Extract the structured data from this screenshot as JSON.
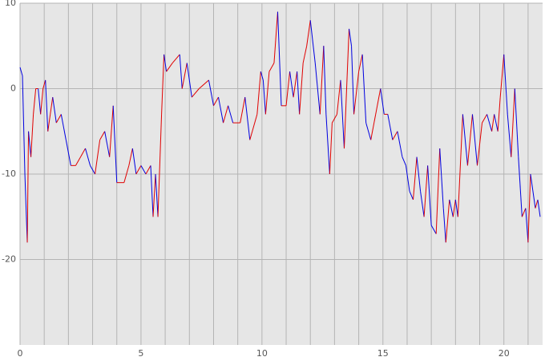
{
  "chart_data": {
    "type": "line",
    "x": [
      0,
      0.1,
      0.2,
      0.3,
      0.35,
      0.45,
      0.55,
      0.65,
      0.75,
      0.85,
      0.95,
      1.05,
      1.15,
      1.25,
      1.35,
      1.5,
      1.7,
      1.9,
      2.1,
      2.3,
      2.5,
      2.7,
      2.9,
      3.1,
      3.3,
      3.5,
      3.7,
      3.85,
      4.0,
      4.3,
      4.5,
      4.65,
      4.8,
      5.0,
      5.2,
      5.4,
      5.5,
      5.6,
      5.7,
      5.85,
      5.95,
      6.05,
      6.3,
      6.6,
      6.7,
      6.9,
      7.1,
      7.4,
      7.8,
      8.0,
      8.2,
      8.4,
      8.6,
      8.8,
      9.1,
      9.3,
      9.5,
      9.8,
      9.95,
      10.05,
      10.15,
      10.3,
      10.5,
      10.65,
      10.8,
      11.0,
      11.15,
      11.3,
      11.45,
      11.55,
      11.7,
      11.85,
      12.0,
      12.2,
      12.4,
      12.55,
      12.65,
      12.8,
      12.9,
      13.1,
      13.25,
      13.4,
      13.6,
      13.7,
      13.8,
      14.0,
      14.15,
      14.3,
      14.5,
      14.7,
      14.9,
      15.05,
      15.2,
      15.4,
      15.6,
      15.8,
      15.95,
      16.1,
      16.25,
      16.4,
      16.55,
      16.7,
      16.85,
      17.0,
      17.2,
      17.35,
      17.5,
      17.6,
      17.75,
      17.9,
      18.0,
      18.1,
      18.3,
      18.5,
      18.7,
      18.9,
      19.1,
      19.3,
      19.5,
      19.6,
      19.75,
      19.85,
      20.0,
      20.15,
      20.3,
      20.45,
      20.6,
      20.75,
      20.9,
      21.0,
      21.1,
      21.3,
      21.4,
      21.5
    ],
    "values": [
      2.5,
      1.5,
      -10,
      -18,
      -5,
      -8,
      -3,
      0,
      0,
      -3,
      0,
      1,
      -5,
      -3,
      -1,
      -4,
      -3,
      -6,
      -9,
      -9,
      -8,
      -7,
      -9,
      -10,
      -6,
      -5,
      -8,
      -2,
      -11,
      -11,
      -9,
      -7,
      -10,
      -9,
      -10,
      -9,
      -15,
      -10,
      -15,
      -3,
      4,
      2,
      3,
      4,
      0,
      3,
      -1,
      0,
      1,
      -2,
      -1,
      -4,
      -2,
      -4,
      -4,
      -1,
      -6,
      -3,
      2,
      1,
      -3,
      2,
      3,
      9,
      -2,
      -2,
      2,
      -1,
      2,
      -3,
      3,
      5,
      8,
      3,
      -3,
      5,
      -3,
      -10,
      -4,
      -3,
      1,
      -7,
      7,
      5,
      -3,
      2,
      4,
      -4,
      -6,
      -3,
      0,
      -3,
      -3,
      -6,
      -5,
      -8,
      -9,
      -12,
      -13,
      -8,
      -12,
      -15,
      -9,
      -16,
      -17,
      -7,
      -14,
      -18,
      -13,
      -15,
      -13,
      -15,
      -3,
      -9,
      -3,
      -9,
      -4,
      -3,
      -5,
      -3,
      -5,
      -1,
      4,
      -3,
      -8,
      0,
      -8,
      -15,
      -14,
      -18,
      -10,
      -14,
      -13,
      -15
    ],
    "rise_color": "#e00000",
    "fall_color": "#0000e0",
    "xlim": [
      0,
      21.6
    ],
    "ylim": [
      -30,
      10
    ],
    "xticks": [
      0,
      5,
      10,
      15,
      20
    ],
    "yticks": [
      -20,
      -10,
      0,
      10
    ],
    "xminor": [
      1,
      2,
      3,
      4,
      6,
      7,
      8,
      9,
      11,
      12,
      13,
      14,
      16,
      17,
      18,
      19,
      21
    ],
    "grid": true
  }
}
